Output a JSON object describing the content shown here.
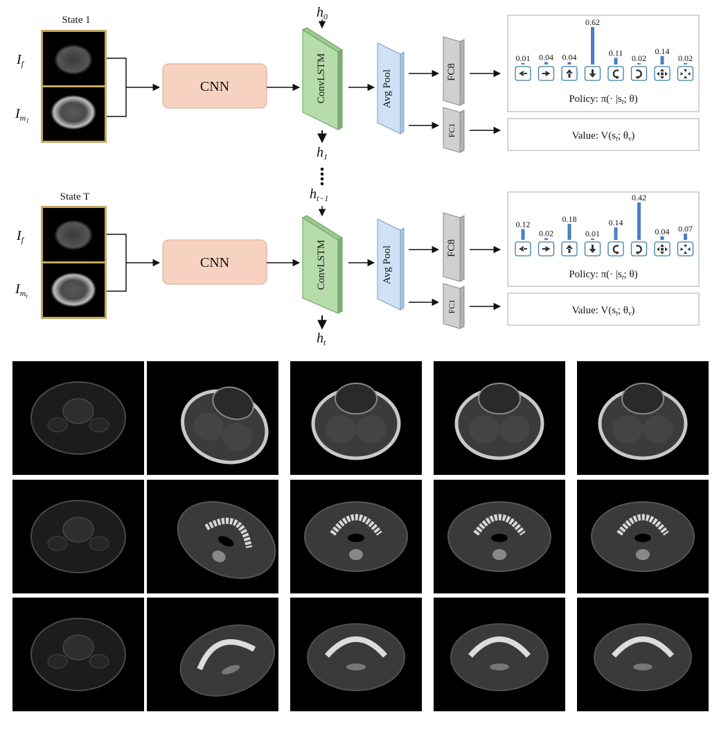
{
  "pipeline": [
    {
      "state_label": "State 1",
      "fixed_label": "I",
      "fixed_sub": "f",
      "moving_label": "I",
      "moving_sub": "m",
      "moving_sub2": "1",
      "cnn_label": "CNN",
      "h_in_label": "h",
      "h_in_sub": "0",
      "h_out_label": "h",
      "h_out_sub": "1",
      "convlstm_label": "ConvLSTM",
      "avgpool_label": "Avg Pool",
      "fc8_label": "FC8",
      "fc1_label": "FC1",
      "probs": [
        "0.01",
        "0.04",
        "0.04",
        "0.62",
        "0.11",
        "0.02",
        "0.14",
        "0.02"
      ],
      "prob_values": [
        0.01,
        0.04,
        0.04,
        0.62,
        0.11,
        0.02,
        0.14,
        0.02
      ],
      "policy_text": "Policy: π(· |s",
      "policy_sub": "t",
      "policy_tail": "; θ)",
      "value_text": "Value: V(s",
      "value_sub": "t",
      "value_mid": "; θ",
      "value_sub2": "v",
      "value_tail": ")"
    },
    {
      "state_label": "State T",
      "fixed_label": "I",
      "fixed_sub": "f",
      "moving_label": "I",
      "moving_sub": "m",
      "moving_sub2": "t",
      "cnn_label": "CNN",
      "h_in_label": "h",
      "h_in_sub": "t−1",
      "h_out_label": "h",
      "h_out_sub": "t",
      "convlstm_label": "ConvLSTM",
      "avgpool_label": "Avg Pool",
      "fc8_label": "FC8",
      "fc1_label": "FC1",
      "probs": [
        "0.12",
        "0.02",
        "0.18",
        "0.01",
        "0.14",
        "0.42",
        "0.04",
        "0.07"
      ],
      "prob_values": [
        0.12,
        0.02,
        0.18,
        0.01,
        0.14,
        0.42,
        0.04,
        0.07
      ],
      "policy_text": "Policy: π(· |s",
      "policy_sub": "t",
      "policy_tail": "; θ)",
      "value_text": "Value: V(s",
      "value_sub": "t",
      "value_mid": "; θ",
      "value_sub2": "v",
      "value_tail": ")"
    }
  ],
  "action_icons": [
    "arrow-left-icon",
    "arrow-right-icon",
    "arrow-up-icon",
    "arrow-down-icon",
    "rotate-ccw-icon",
    "rotate-cw-icon",
    "expand-icon",
    "shrink-icon"
  ],
  "colors": {
    "cnn_fill": "#f8d2c0",
    "convlstm_fill": "#b7dcab",
    "avgpool_fill": "#cfe2f5",
    "fc_fill": "#d0d0d0",
    "bar": "#4a7ec6",
    "icon_border": "#3a7ca5",
    "frame": "#c8a660"
  },
  "grid_rows": 3,
  "grid_cols": 5
}
